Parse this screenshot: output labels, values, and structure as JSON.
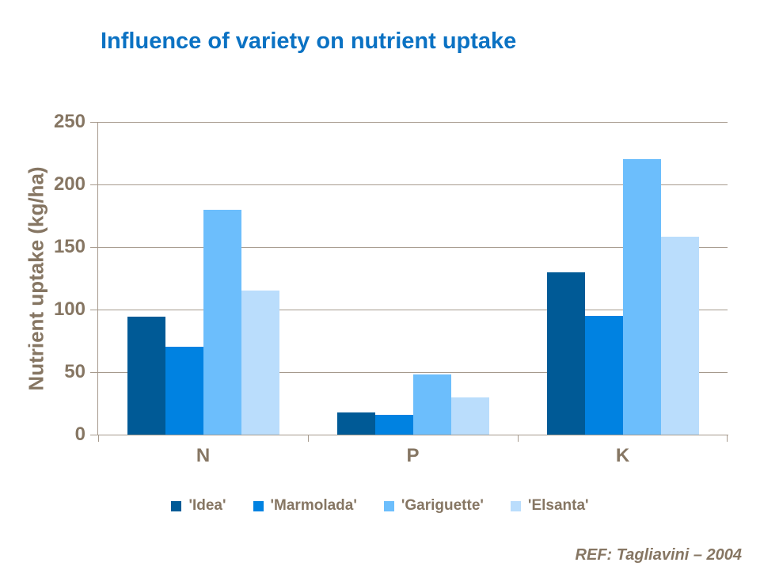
{
  "slide": {
    "title": "Influence of variety on nutrient uptake",
    "reference": "REF: Tagliavini – 2004"
  },
  "chart_data": {
    "type": "bar",
    "title": "Influence of variety on nutrient uptake",
    "categories": [
      "N",
      "P",
      "K"
    ],
    "series": [
      {
        "name": "'Idea'",
        "color": "#005A96",
        "values": [
          94,
          18,
          130
        ]
      },
      {
        "name": "'Marmolada'",
        "color": "#0082E1",
        "values": [
          70,
          16,
          95
        ]
      },
      {
        "name": "'Gariguette'",
        "color": "#6CBEFC",
        "values": [
          180,
          48,
          220
        ]
      },
      {
        "name": "'Elsanta'",
        "color": "#BADDFC",
        "values": [
          115,
          30,
          158
        ]
      }
    ],
    "xlabel": "",
    "ylabel": "Nutrient uptake (kg/ha)",
    "ylim": [
      0,
      250
    ],
    "yticks": [
      0,
      50,
      100,
      150,
      200,
      250
    ],
    "grid": true,
    "legend_position": "bottom",
    "colors": {
      "title": "#0B72C3",
      "axis_text": "#867663",
      "grid": "#A69A8D",
      "background": "#FFFFFF"
    }
  }
}
